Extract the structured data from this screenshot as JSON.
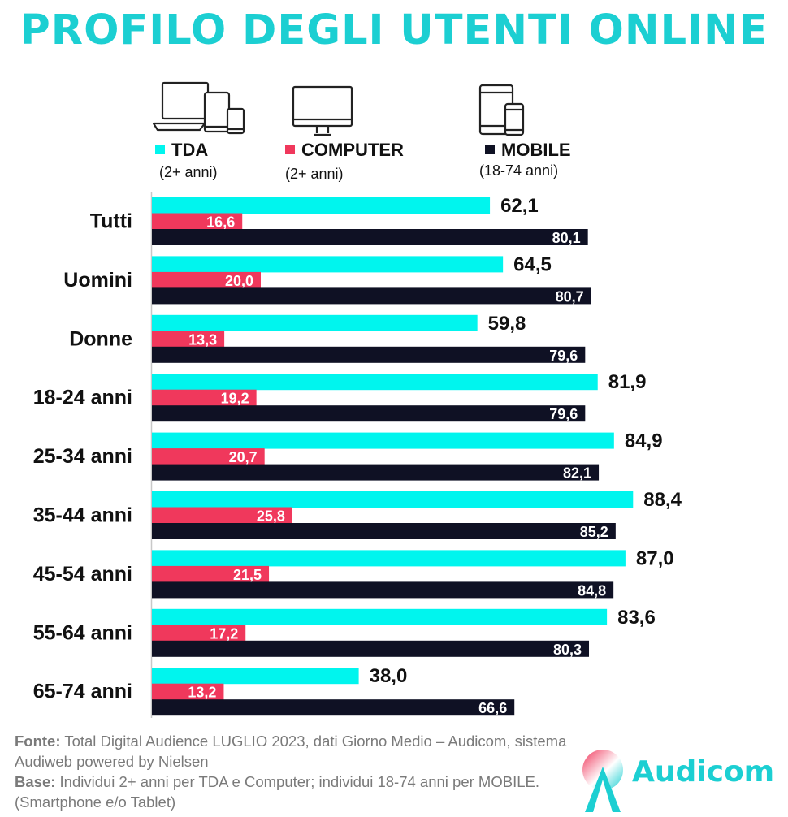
{
  "title": "PROFILO DEGLI UTENTI ONLINE",
  "colors": {
    "title": "#1ccfd2",
    "tda": "#00f5ee",
    "computer": "#f0385c",
    "mobile": "#0f1124",
    "value_outside": "#111111",
    "value_inside": "#ffffff",
    "footer": "#7a7a7a",
    "brand": "#1ccfd2"
  },
  "legend": [
    {
      "label": "TDA",
      "sub": "(2+ anni)",
      "icon": "multi-device-icon"
    },
    {
      "label": "COMPUTER",
      "sub": "(2+ anni)",
      "icon": "monitor-icon"
    },
    {
      "label": "MOBILE",
      "sub": "(18-74 anni)",
      "icon": "mobile-devices-icon"
    }
  ],
  "chart_data": {
    "type": "bar",
    "orientation": "horizontal",
    "title": "PROFILO DEGLI UTENTI ONLINE",
    "categories": [
      "Tutti",
      "Uomini",
      "Donne",
      "18-24 anni",
      "25-34 anni",
      "35-44 anni",
      "45-54 anni",
      "55-64 anni",
      "65-74 anni"
    ],
    "series": [
      {
        "name": "TDA",
        "values": [
          62.1,
          64.5,
          59.8,
          81.9,
          84.9,
          88.4,
          87.0,
          83.6,
          38.0
        ],
        "labels": [
          "62,1",
          "64,5",
          "59,8",
          "81,9",
          "84,9",
          "88,4",
          "87,0",
          "83,6",
          "38,0"
        ]
      },
      {
        "name": "COMPUTER",
        "values": [
          16.6,
          20.0,
          13.3,
          19.2,
          20.7,
          25.8,
          21.5,
          17.2,
          13.2
        ],
        "labels": [
          "16,6",
          "20,0",
          "13,3",
          "19,2",
          "20,7",
          "25,8",
          "21,5",
          "17,2",
          "13,2"
        ]
      },
      {
        "name": "MOBILE",
        "values": [
          80.1,
          80.7,
          79.6,
          79.6,
          82.1,
          85.2,
          84.8,
          80.3,
          66.6
        ],
        "labels": [
          "80,1",
          "80,7",
          "79,6",
          "79,6",
          "82,1",
          "85,2",
          "84,8",
          "80,3",
          "66,6"
        ]
      }
    ],
    "xlim": [
      0,
      100
    ],
    "grid": false,
    "legend_position": "top"
  },
  "footer": {
    "fonte_label": "Fonte:",
    "fonte_text": "Total Digital Audience LUGLIO 2023, dati Giorno Medio – Audicom, sistema Audiweb powered by Nielsen",
    "base_label": "Base:",
    "base_text": "Individui 2+ anni per TDA e Computer; individui 18-74 anni per MOBILE.(Smartphone e/o Tablet)"
  },
  "logo": {
    "text": "Audicom"
  }
}
